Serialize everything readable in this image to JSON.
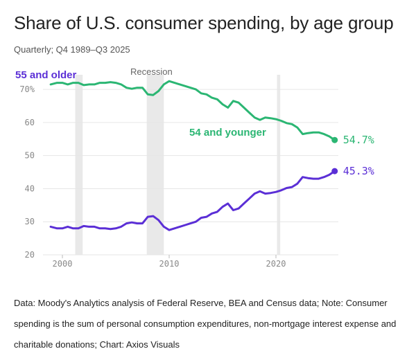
{
  "title": "Share of U.S. consumer spending, by age group",
  "subtitle": "Quarterly; Q4 1989–Q3 2025",
  "note": "Data: Moody's Analytics analysis of Federal Reserve, BEA and Census data; Note: Consumer spending is the sum of personal consumption expenditures, non-mortgage interest expense and charitable donations; Chart: Axios Visuals",
  "chart_data": {
    "type": "line",
    "title": "Share of U.S. consumer spending, by age group",
    "subtitle": "Quarterly; Q4 1989–Q3 2025",
    "ylim": [
      20,
      74
    ],
    "xlim": [
      1997.5,
      2027.5
    ],
    "yticks": [
      20,
      30,
      40,
      50,
      60,
      70
    ],
    "ytick_labels": [
      "20",
      "30",
      "40",
      "50",
      "60",
      "70%"
    ],
    "xticks": [
      2000,
      2010,
      2020
    ],
    "xtick_labels": [
      "2000",
      "2010",
      "2020"
    ],
    "grid": true,
    "annotation": "Recession",
    "recessions": [
      [
        2001.2,
        2001.9
      ],
      [
        2007.9,
        2009.5
      ],
      [
        2020.1,
        2020.4
      ]
    ],
    "series": [
      {
        "name": "54 and younger",
        "color": "#2bb673",
        "end_label": "54.7%",
        "x": [
          1998.9,
          1999.5,
          2000.0,
          2000.5,
          2001.0,
          2001.5,
          2002.0,
          2002.5,
          2003.0,
          2003.5,
          2004.0,
          2004.5,
          2005.0,
          2005.5,
          2006.0,
          2006.5,
          2007.0,
          2007.5,
          2008.0,
          2008.5,
          2009.0,
          2009.5,
          2010.0,
          2010.5,
          2011.0,
          2011.5,
          2012.0,
          2012.5,
          2013.0,
          2013.5,
          2014.0,
          2014.5,
          2015.0,
          2015.5,
          2016.0,
          2016.5,
          2017.0,
          2017.5,
          2018.0,
          2018.5,
          2019.0,
          2019.5,
          2020.0,
          2020.5,
          2021.0,
          2021.5,
          2022.0,
          2022.5,
          2023.0,
          2023.5,
          2024.0,
          2024.5,
          2025.0,
          2025.5
        ],
        "y": [
          71.5,
          72.0,
          72.0,
          71.5,
          72.0,
          72.0,
          71.3,
          71.5,
          71.5,
          72.0,
          72.0,
          72.2,
          72.0,
          71.5,
          70.5,
          70.2,
          70.5,
          70.5,
          68.5,
          68.3,
          69.5,
          71.5,
          72.5,
          72.0,
          71.5,
          71.0,
          70.5,
          70.0,
          68.8,
          68.5,
          67.5,
          67.0,
          65.5,
          64.5,
          66.5,
          66.0,
          64.5,
          63.0,
          61.5,
          60.8,
          61.5,
          61.3,
          61.0,
          60.5,
          59.8,
          59.5,
          58.5,
          56.5,
          56.8,
          57.0,
          57.0,
          56.5,
          55.8,
          54.7
        ]
      },
      {
        "name": "55 and older",
        "color": "#5b2fd6",
        "end_label": "45.3%",
        "x": [
          1998.9,
          1999.5,
          2000.0,
          2000.5,
          2001.0,
          2001.5,
          2002.0,
          2002.5,
          2003.0,
          2003.5,
          2004.0,
          2004.5,
          2005.0,
          2005.5,
          2006.0,
          2006.5,
          2007.0,
          2007.5,
          2008.0,
          2008.5,
          2009.0,
          2009.5,
          2010.0,
          2010.5,
          2011.0,
          2011.5,
          2012.0,
          2012.5,
          2013.0,
          2013.5,
          2014.0,
          2014.5,
          2015.0,
          2015.5,
          2016.0,
          2016.5,
          2017.0,
          2017.5,
          2018.0,
          2018.5,
          2019.0,
          2019.5,
          2020.0,
          2020.5,
          2021.0,
          2021.5,
          2022.0,
          2022.5,
          2023.0,
          2023.5,
          2024.0,
          2024.5,
          2025.0,
          2025.5
        ],
        "y": [
          28.5,
          28.0,
          28.0,
          28.5,
          28.0,
          28.0,
          28.7,
          28.5,
          28.5,
          28.0,
          28.0,
          27.8,
          28.0,
          28.5,
          29.5,
          29.8,
          29.5,
          29.5,
          31.5,
          31.7,
          30.5,
          28.5,
          27.5,
          28.0,
          28.5,
          29.0,
          29.5,
          30.0,
          31.2,
          31.5,
          32.5,
          33.0,
          34.5,
          35.5,
          33.5,
          34.0,
          35.5,
          37.0,
          38.5,
          39.2,
          38.5,
          38.7,
          39.0,
          39.5,
          40.2,
          40.5,
          41.5,
          43.5,
          43.2,
          43.0,
          43.0,
          43.5,
          44.2,
          45.3
        ]
      }
    ]
  }
}
